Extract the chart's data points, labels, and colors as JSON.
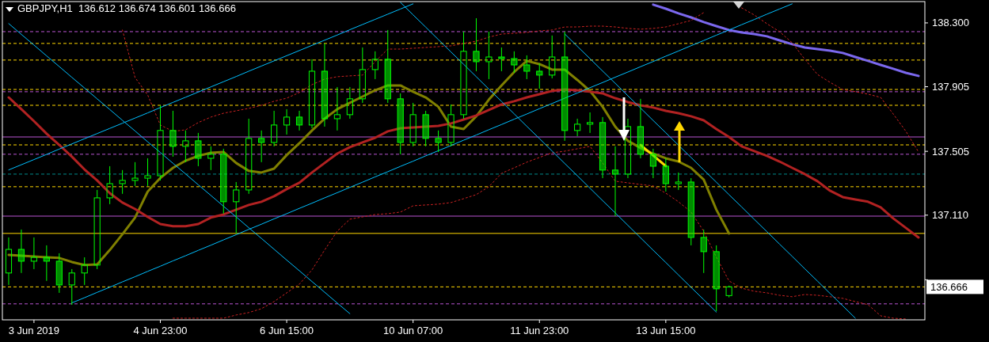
{
  "chart_data": {
    "type": "candlestick",
    "title": "GBPJPY,H1  136.612 136.674 136.601 136.666",
    "color": "#00ff00",
    "ylim": [
      136.462,
      138.432
    ],
    "yticks": [
      {
        "value": 138.3,
        "label": "138.300"
      },
      {
        "value": 137.905,
        "label": "137.905"
      },
      {
        "value": 137.505,
        "label": "137.505"
      },
      {
        "value": 137.11,
        "label": "137.110"
      },
      {
        "value": 136.71,
        "label": null
      }
    ],
    "categories": [
      null,
      null,
      "3 Jun 2019",
      null,
      null,
      null,
      null,
      null,
      null,
      null,
      null,
      null,
      "4 Jun 23:00",
      null,
      null,
      null,
      null,
      null,
      null,
      null,
      null,
      null,
      "6 Jun 15:00",
      null,
      null,
      null,
      null,
      null,
      null,
      null,
      null,
      null,
      "10 Jun 07:00",
      null,
      null,
      null,
      null,
      null,
      null,
      null,
      null,
      null,
      "11 Jun 23:00",
      null,
      null,
      null,
      null,
      null,
      null,
      null,
      null,
      null,
      "13 Jun 15:00",
      null,
      null,
      null,
      null,
      null,
      null,
      null,
      null,
      null,
      null,
      null,
      null,
      null,
      null,
      null,
      null,
      null,
      null,
      null,
      null
    ],
    "ohlc": [
      [
        136.752,
        136.972,
        136.678,
        136.898
      ],
      [
        136.898,
        137.021,
        136.752,
        136.825
      ],
      [
        136.825,
        136.972,
        136.776,
        136.849
      ],
      [
        136.849,
        136.923,
        136.703,
        136.825
      ],
      [
        136.825,
        136.874,
        136.629,
        136.678
      ],
      [
        136.678,
        136.776,
        136.555,
        136.752
      ],
      [
        136.752,
        136.849,
        136.678,
        136.801
      ],
      [
        136.801,
        137.266,
        136.776,
        137.217
      ],
      [
        137.217,
        137.413,
        137.178,
        137.305
      ],
      [
        137.305,
        137.389,
        137.242,
        137.325
      ],
      [
        137.325,
        137.438,
        137.291,
        137.339
      ],
      [
        137.339,
        137.462,
        137.291,
        137.354
      ],
      [
        137.354,
        137.79,
        137.325,
        137.634
      ],
      [
        137.634,
        137.756,
        137.472,
        137.536
      ],
      [
        137.536,
        137.634,
        137.438,
        137.57
      ],
      [
        137.57,
        137.619,
        137.413,
        137.462
      ],
      [
        137.462,
        137.536,
        137.389,
        137.487
      ],
      [
        137.487,
        137.521,
        137.119,
        137.193
      ],
      [
        137.193,
        137.315,
        136.997,
        137.266
      ],
      [
        137.266,
        137.707,
        137.242,
        137.585
      ],
      [
        137.585,
        137.634,
        137.438,
        137.56
      ],
      [
        137.56,
        137.756,
        137.536,
        137.668
      ],
      [
        137.668,
        137.766,
        137.609,
        137.717
      ],
      [
        137.717,
        137.756,
        137.634,
        137.668
      ],
      [
        137.668,
        138.075,
        137.648,
        138.001
      ],
      [
        138.001,
        138.173,
        137.658,
        137.707
      ],
      [
        137.707,
        137.903,
        137.634,
        137.732
      ],
      [
        137.732,
        137.903,
        137.707,
        137.83
      ],
      [
        137.83,
        138.148,
        137.805,
        138.011
      ],
      [
        138.011,
        138.124,
        137.952,
        138.075
      ],
      [
        138.075,
        138.256,
        137.805,
        137.83
      ],
      [
        137.83,
        137.864,
        137.487,
        137.56
      ],
      [
        137.56,
        137.805,
        137.536,
        137.732
      ],
      [
        137.732,
        137.756,
        137.536,
        137.585
      ],
      [
        137.585,
        137.634,
        137.501,
        137.56
      ],
      [
        137.56,
        137.795,
        137.536,
        137.732
      ],
      [
        137.732,
        138.246,
        137.707,
        138.124
      ],
      [
        138.124,
        138.329,
        138.001,
        138.06
      ],
      [
        138.06,
        138.246,
        137.952,
        138.089
      ],
      [
        138.089,
        138.148,
        138.001,
        138.079
      ],
      [
        138.079,
        138.124,
        137.991,
        138.04
      ],
      [
        138.04,
        138.099,
        137.952,
        138.001
      ],
      [
        138.001,
        138.05,
        137.893,
        137.977
      ],
      [
        137.977,
        138.222,
        137.957,
        138.089
      ],
      [
        138.089,
        138.246,
        137.57,
        137.634
      ],
      [
        137.634,
        137.707,
        137.599,
        137.673
      ],
      [
        137.673,
        137.746,
        137.619,
        137.683
      ],
      [
        137.683,
        137.717,
        137.339,
        137.389
      ],
      [
        137.389,
        137.536,
        137.104,
        137.364
      ],
      [
        137.364,
        137.707,
        137.339,
        137.658
      ],
      [
        137.658,
        137.83,
        137.462,
        137.487
      ],
      [
        137.487,
        137.521,
        137.339,
        137.413
      ],
      [
        137.413,
        137.462,
        137.256,
        137.305
      ],
      [
        137.305,
        137.374,
        137.266,
        137.315
      ],
      [
        137.315,
        137.339,
        136.923,
        136.972
      ],
      [
        136.972,
        137.021,
        136.752,
        136.884
      ],
      [
        136.884,
        136.923,
        136.516,
        136.654
      ],
      [
        136.612,
        136.674,
        136.601,
        136.666
      ],
      null,
      null,
      null,
      null,
      null,
      null,
      null,
      null,
      null,
      null,
      null,
      null,
      null,
      null,
      null
    ],
    "series": [
      {
        "type": "line",
        "color": "#808000",
        "line_style": "solid",
        "values": [
          136.864,
          136.859,
          136.854,
          136.849,
          136.845,
          136.82,
          136.801,
          136.805,
          136.894,
          136.992,
          137.095,
          137.256,
          137.34,
          137.403,
          137.447,
          137.477,
          137.496,
          137.501,
          137.433,
          137.384,
          137.374,
          137.398,
          137.482,
          137.555,
          137.634,
          137.707,
          137.766,
          137.805,
          137.844,
          137.883,
          137.913,
          137.913,
          137.874,
          137.839,
          137.781,
          137.658,
          137.643,
          137.722,
          137.825,
          137.913,
          137.996,
          138.065,
          138.045,
          138.011,
          138.011,
          137.947,
          137.879,
          137.781,
          137.658,
          137.57,
          137.526,
          137.491,
          137.462,
          137.442,
          137.403,
          137.33,
          137.144,
          136.997,
          null,
          null,
          null,
          null,
          null,
          null,
          null,
          null,
          null,
          null,
          null,
          null,
          null,
          null,
          null
        ]
      },
      {
        "type": "line",
        "color": "#b22222",
        "line_style": "solid",
        "values": [
          137.839,
          137.766,
          137.692,
          137.614,
          137.545,
          137.472,
          137.393,
          137.325,
          137.246,
          137.188,
          137.148,
          137.099,
          137.055,
          137.041,
          137.041,
          137.055,
          137.095,
          137.114,
          137.144,
          137.173,
          137.193,
          137.227,
          137.271,
          137.31,
          137.374,
          137.433,
          137.491,
          137.531,
          137.56,
          137.589,
          137.629,
          137.648,
          137.653,
          137.658,
          137.663,
          137.678,
          137.702,
          137.727,
          137.761,
          137.795,
          137.815,
          137.839,
          137.859,
          137.879,
          137.888,
          137.883,
          137.874,
          137.864,
          137.834,
          137.81,
          137.79,
          137.776,
          137.756,
          137.741,
          137.722,
          137.697,
          137.643,
          137.594,
          137.536,
          137.506,
          137.477,
          137.442,
          137.403,
          137.364,
          137.32,
          137.261,
          137.222,
          137.207,
          137.193,
          137.158,
          137.09,
          137.031,
          136.972
        ]
      },
      {
        "type": "line",
        "color": "#7b68ee",
        "line_style": "solid",
        "values": [
          null,
          null,
          null,
          null,
          null,
          null,
          null,
          null,
          null,
          null,
          null,
          null,
          null,
          null,
          null,
          null,
          null,
          null,
          null,
          null,
          null,
          null,
          null,
          null,
          null,
          null,
          null,
          null,
          null,
          null,
          null,
          null,
          null,
          null,
          null,
          null,
          null,
          null,
          null,
          null,
          null,
          null,
          null,
          null,
          null,
          null,
          null,
          null,
          null,
          null,
          null,
          138.413,
          138.388,
          138.359,
          138.334,
          138.305,
          138.28,
          138.256,
          138.241,
          138.231,
          138.217,
          138.192,
          138.168,
          138.148,
          138.138,
          138.128,
          138.114,
          138.089,
          138.065,
          138.04,
          138.016,
          137.991,
          137.972
        ]
      },
      {
        "type": "line",
        "color": "#cc2222",
        "line_style": "dotted",
        "values": [
          null,
          null,
          null,
          null,
          null,
          null,
          null,
          null,
          null,
          138.256,
          137.962,
          137.854,
          137.668,
          137.629,
          137.638,
          137.683,
          137.717,
          137.741,
          137.756,
          137.771,
          137.79,
          137.815,
          137.834,
          137.869,
          137.918,
          137.952,
          137.967,
          137.972,
          137.977,
          138.06,
          138.138,
          138.138,
          138.143,
          138.148,
          138.153,
          138.158,
          138.173,
          138.187,
          138.212,
          138.231,
          138.236,
          138.241,
          138.251,
          138.256,
          138.275,
          138.275,
          138.28,
          138.28,
          138.275,
          138.266,
          138.261,
          138.266,
          138.275,
          138.295,
          138.315,
          138.364,
          null,
          null,
          138.393,
          138.349,
          138.295,
          138.246,
          138.177,
          138.075,
          137.981,
          137.932,
          137.888,
          137.874,
          137.859,
          137.839,
          137.736,
          137.629,
          137.501
        ]
      },
      {
        "type": "line",
        "color": "#cc2222",
        "line_style": "dotted",
        "values": [
          null,
          null,
          null,
          null,
          null,
          null,
          null,
          null,
          null,
          null,
          null,
          null,
          null,
          136.472,
          136.472,
          136.472,
          136.472,
          136.472,
          136.492,
          136.507,
          136.531,
          136.575,
          136.629,
          136.683,
          136.771,
          136.894,
          137.011,
          137.085,
          137.099,
          137.114,
          137.119,
          137.129,
          137.168,
          137.173,
          137.178,
          137.188,
          137.212,
          137.237,
          137.286,
          137.369,
          137.403,
          137.438,
          137.467,
          137.496,
          137.506,
          137.521,
          137.536,
          137.433,
          137.32,
          137.31,
          137.3,
          137.291,
          137.246,
          137.193,
          137.129,
          137.011,
          136.85,
          136.703,
          136.658,
          136.639,
          136.629,
          136.614,
          136.605,
          136.619,
          136.614,
          136.605,
          136.595,
          136.575,
          136.556,
          136.487,
          136.472,
          136.467,
          null
        ]
      },
      {
        "type": "line",
        "color": "#00bfff",
        "line_style": "solid",
        "values": [
          137.39,
          137.422,
          137.454,
          137.486,
          137.519,
          137.551,
          137.583,
          137.615,
          137.647,
          137.679,
          137.711,
          137.743,
          137.776,
          137.808,
          137.84,
          137.872,
          137.904,
          137.936,
          137.968,
          138.001,
          138.033,
          138.065,
          138.097,
          138.129,
          138.161,
          138.193,
          138.225,
          138.258,
          138.29,
          138.322,
          138.354,
          138.386,
          138.418,
          null,
          null,
          null,
          null,
          null,
          null,
          null,
          null,
          null,
          null,
          null,
          null,
          null,
          null,
          null,
          null,
          null,
          null,
          null,
          null,
          null,
          null,
          null,
          null,
          null,
          null,
          null,
          null,
          null,
          null,
          null,
          null,
          null,
          null,
          null,
          null,
          null,
          null,
          null,
          null
        ]
      },
      {
        "type": "line",
        "color": "#00bfff",
        "line_style": "solid",
        "values": [
          null,
          null,
          null,
          null,
          null,
          136.567,
          136.599,
          136.632,
          136.664,
          136.697,
          136.729,
          136.762,
          136.794,
          136.827,
          136.859,
          136.892,
          136.924,
          136.957,
          136.989,
          137.022,
          137.054,
          137.087,
          137.119,
          137.152,
          137.184,
          137.217,
          137.249,
          137.282,
          137.314,
          137.347,
          137.379,
          137.412,
          137.444,
          137.477,
          137.509,
          137.541,
          137.574,
          137.606,
          137.639,
          137.671,
          137.704,
          137.736,
          137.769,
          137.801,
          137.834,
          137.866,
          137.899,
          137.931,
          137.964,
          137.996,
          138.029,
          138.061,
          138.094,
          138.126,
          138.159,
          138.191,
          138.224,
          138.256,
          138.289,
          138.321,
          138.354,
          138.386,
          138.418,
          null,
          null,
          null,
          null,
          null,
          null,
          null,
          null,
          null,
          null
        ]
      },
      {
        "type": "line",
        "color": "#00bfff",
        "line_style": "solid",
        "values": [
          138.296,
          138.229,
          138.163,
          138.096,
          138.03,
          137.963,
          137.897,
          137.83,
          137.764,
          137.697,
          137.631,
          137.564,
          137.498,
          137.431,
          137.365,
          137.298,
          137.232,
          137.165,
          137.099,
          137.032,
          136.966,
          136.899,
          136.832,
          136.766,
          136.699,
          136.633,
          136.566,
          136.5,
          null,
          null,
          null,
          null,
          null,
          null,
          null,
          null,
          null,
          null,
          null,
          null,
          null,
          null,
          null,
          null,
          null,
          null,
          null,
          null,
          null,
          null,
          null,
          null,
          null,
          null,
          null,
          null,
          null,
          null,
          null,
          null,
          null,
          null,
          null,
          null,
          null,
          null,
          null,
          null,
          null,
          null,
          null,
          null,
          null
        ]
      },
      {
        "type": "line",
        "color": "#00bfff",
        "line_style": "solid",
        "values": [
          null,
          null,
          null,
          null,
          null,
          null,
          null,
          null,
          null,
          null,
          null,
          null,
          null,
          null,
          null,
          null,
          null,
          null,
          null,
          null,
          null,
          null,
          null,
          null,
          null,
          null,
          null,
          null,
          null,
          null,
          null,
          138.427,
          138.35,
          138.274,
          138.197,
          138.12,
          138.044,
          137.967,
          137.89,
          137.814,
          137.737,
          137.66,
          137.584,
          137.507,
          137.43,
          137.354,
          137.277,
          137.2,
          137.124,
          137.047,
          136.97,
          136.893,
          136.817,
          136.74,
          136.663,
          136.587,
          136.51,
          null,
          null,
          null,
          null,
          null,
          null,
          null,
          null,
          null,
          null,
          null,
          null,
          null,
          null,
          null,
          null
        ]
      },
      {
        "type": "line",
        "color": "#00bfff",
        "line_style": "solid",
        "values": [
          null,
          null,
          null,
          null,
          null,
          null,
          null,
          null,
          null,
          null,
          null,
          null,
          null,
          null,
          null,
          null,
          null,
          null,
          null,
          null,
          null,
          null,
          null,
          null,
          null,
          null,
          null,
          null,
          null,
          null,
          null,
          null,
          null,
          null,
          null,
          null,
          null,
          null,
          null,
          null,
          null,
          null,
          null,
          null,
          138.232,
          138.155,
          138.079,
          138.002,
          137.926,
          137.849,
          137.773,
          137.696,
          137.62,
          137.543,
          137.467,
          137.39,
          137.314,
          137.237,
          137.161,
          137.084,
          137.008,
          136.931,
          136.855,
          136.778,
          136.702,
          136.625,
          136.549,
          136.472,
          null,
          null,
          null,
          null,
          null
        ]
      },
      {
        "type": "line",
        "color": "#ffd700",
        "line_style": "solid",
        "values": [
          null,
          null,
          null,
          null,
          null,
          null,
          null,
          null,
          null,
          null,
          null,
          null,
          null,
          null,
          null,
          null,
          null,
          null,
          null,
          null,
          null,
          null,
          null,
          null,
          null,
          null,
          null,
          null,
          null,
          null,
          null,
          null,
          null,
          null,
          null,
          null,
          null,
          null,
          null,
          null,
          null,
          null,
          null,
          null,
          null,
          null,
          null,
          null,
          null,
          null,
          137.544,
          137.479,
          137.414,
          null,
          null,
          null,
          null,
          null,
          null,
          null,
          null,
          null,
          null,
          null,
          null,
          null,
          null,
          null,
          null,
          null,
          null,
          null,
          null
        ]
      }
    ],
    "ref_lines": [
      {
        "axis": "y",
        "value": 138.246,
        "color": "#ba55d3",
        "line_style": "dashed"
      },
      {
        "axis": "y",
        "value": 138.173,
        "color": "#ffd700",
        "line_style": "dashed"
      },
      {
        "axis": "y",
        "value": 138.07,
        "color": "#ffd700",
        "line_style": "dashed"
      },
      {
        "axis": "y",
        "value": 137.888,
        "color": "#ffd700",
        "line_style": "dashed"
      },
      {
        "axis": "y",
        "value": 137.874,
        "color": "#ba55d3",
        "line_style": "dashed"
      },
      {
        "axis": "y",
        "value": 137.79,
        "color": "#ffd700",
        "line_style": "dashed"
      },
      {
        "axis": "y",
        "value": 137.594,
        "color": "#ba55d3",
        "line_style": "solid"
      },
      {
        "axis": "y",
        "value": 137.545,
        "color": "#ffd700",
        "line_style": "dashed"
      },
      {
        "axis": "y",
        "value": 137.487,
        "color": "#ba55d3",
        "line_style": "dashed"
      },
      {
        "axis": "y",
        "value": 137.364,
        "color": "#008b8b",
        "line_style": "dashed"
      },
      {
        "axis": "y",
        "value": 137.286,
        "color": "#ffd700",
        "line_style": "dashed"
      },
      {
        "axis": "y",
        "value": 137.104,
        "color": "#ba55d3",
        "line_style": "solid"
      },
      {
        "axis": "y",
        "value": 136.997,
        "color": "#ffd700",
        "line_style": "solid"
      },
      {
        "axis": "y",
        "value": 136.666,
        "color": "#ffd700",
        "line_style": "dashed",
        "label": "136.666"
      },
      {
        "axis": "y",
        "value": 136.561,
        "color": "#ba55d3",
        "line_style": "dashed"
      }
    ]
  }
}
